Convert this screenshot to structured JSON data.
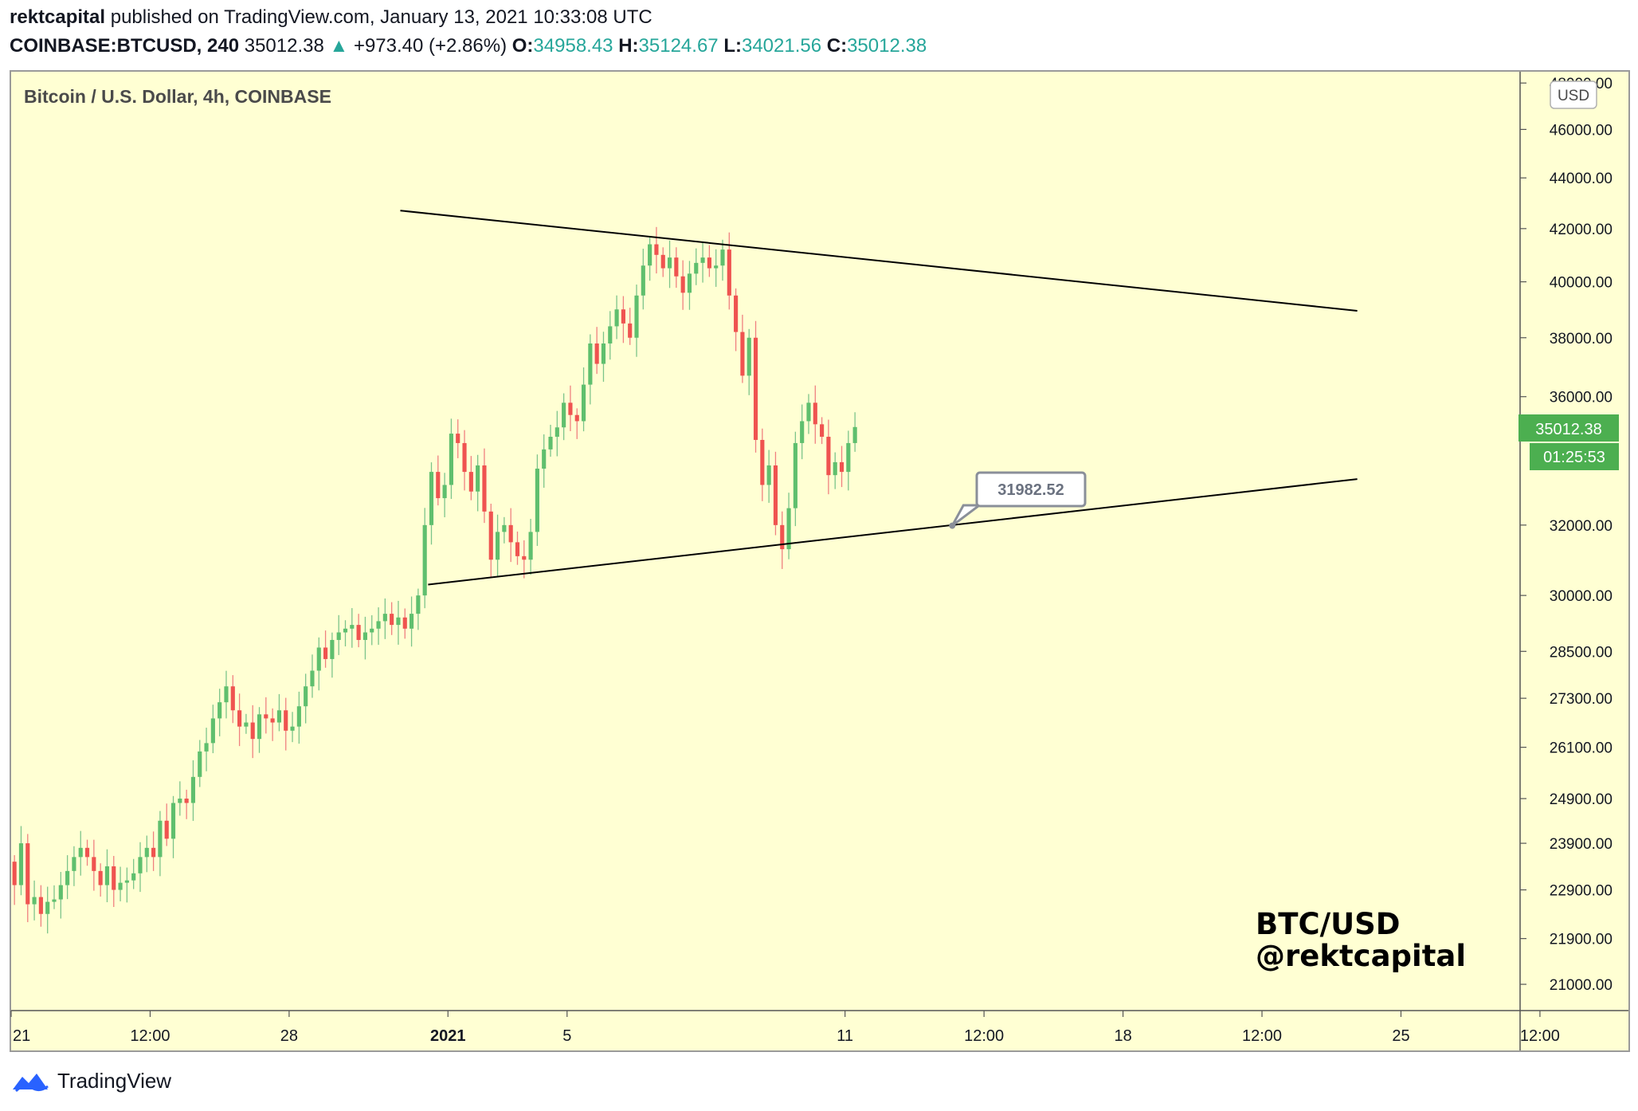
{
  "header": {
    "author": "rektcapital",
    "published": "published on TradingView.com, January 13, 2021 10:33:08 UTC",
    "symbol": "COINBASE:BTCUSD, 240",
    "price": "35012.38",
    "change_arrow": "▲",
    "change": "+973.40 (+2.86%)",
    "o_label": "O:",
    "o_value": "34958.43",
    "h_label": "H:",
    "h_value": "35124.67",
    "l_label": "L:",
    "l_value": "34021.56",
    "c_label": "C:",
    "c_value": "35012.38"
  },
  "footer": {
    "brand": "TradingView"
  },
  "colors": {
    "background": "#ffffd3",
    "up": "#26a69a",
    "up_body": "#5fbf6e",
    "down": "#ef5350",
    "price_tag": "#4caf50",
    "trendline": "#000000"
  },
  "chart_data": {
    "type": "candlestick",
    "title": "Bitcoin / U.S. Dollar, 4h, COINBASE",
    "currency_badge": "USD",
    "y_scale": "log",
    "ylim": [
      20500,
      48500
    ],
    "y_ticks": [
      21000,
      21900,
      22900,
      23900,
      24900,
      26100,
      27300,
      28500,
      30000,
      32000,
      36000,
      38000,
      40000,
      42000,
      44000,
      46000,
      48000
    ],
    "y_tick_labels": [
      "21000.00",
      "21900.00",
      "22900.00",
      "23900.00",
      "24900.00",
      "26100.00",
      "27300.00",
      "28500.00",
      "30000.00",
      "32000.00",
      "36000.00",
      "38000.00",
      "40000.00",
      "42000.00",
      "44000.00",
      "46000.00",
      "48000.00"
    ],
    "x_tick_labels": [
      "21",
      "12:00",
      "28",
      "2021",
      "5",
      "11",
      "12:00",
      "18",
      "12:00",
      "25",
      "12:00"
    ],
    "x_tick_bold": [
      false,
      false,
      false,
      true,
      false,
      false,
      false,
      false,
      false,
      false,
      false
    ],
    "x_range_days": [
      "2020-12-21",
      "2021-01-28"
    ],
    "x_ticks_days": [
      0,
      3.5,
      7,
      11,
      14,
      21,
      24.5,
      28,
      31.5,
      35,
      38.5
    ],
    "last_price_label": "35012.38",
    "countdown_label": "01:25:53",
    "callout": {
      "text": "31982.52",
      "day": 23.7,
      "price": 31982.52
    },
    "trendlines": [
      {
        "name": "upper",
        "start": {
          "day": 9.8,
          "price": 42700
        },
        "end": {
          "day": 33.9,
          "price": 38950
        }
      },
      {
        "name": "lower",
        "start": {
          "day": 10.5,
          "price": 30300
        },
        "end": {
          "day": 33.9,
          "price": 33380
        }
      }
    ],
    "watermark": [
      "BTC/USD",
      "@rektcapital"
    ],
    "candle_interval_hours": 4,
    "start_price": 23500,
    "closes": [
      23000,
      23900,
      22600,
      22750,
      22400,
      22650,
      22700,
      23000,
      23300,
      23600,
      23800,
      23600,
      23300,
      23000,
      23400,
      22900,
      23050,
      23100,
      23250,
      23600,
      23800,
      23600,
      24400,
      24000,
      24800,
      24900,
      24800,
      25400,
      26000,
      26200,
      26800,
      27200,
      27600,
      27000,
      26600,
      26700,
      26300,
      26900,
      26800,
      26700,
      27000,
      26500,
      26600,
      27100,
      27600,
      28000,
      28600,
      28300,
      28800,
      29000,
      29100,
      29200,
      28800,
      29000,
      29100,
      29300,
      29500,
      29200,
      29400,
      29100,
      29500,
      30000,
      32000,
      33600,
      32800,
      33200,
      34800,
      34500,
      33600,
      33000,
      33800,
      32400,
      31000,
      31800,
      32000,
      31500,
      31100,
      31000,
      31800,
      33700,
      34300,
      34700,
      35000,
      35800,
      35400,
      35200,
      36400,
      37800,
      37100,
      37800,
      38400,
      39000,
      38500,
      38000,
      39500,
      40600,
      41400,
      41000,
      40500,
      40900,
      40200,
      39600,
      40300,
      40700,
      40900,
      40500,
      40600,
      41200,
      39500,
      38200,
      36700,
      38000,
      34600,
      33200,
      33800,
      32000,
      31300,
      32500,
      34500,
      35200,
      35800,
      35100,
      34700,
      33500,
      33900,
      33600,
      34500,
      35012
    ]
  }
}
